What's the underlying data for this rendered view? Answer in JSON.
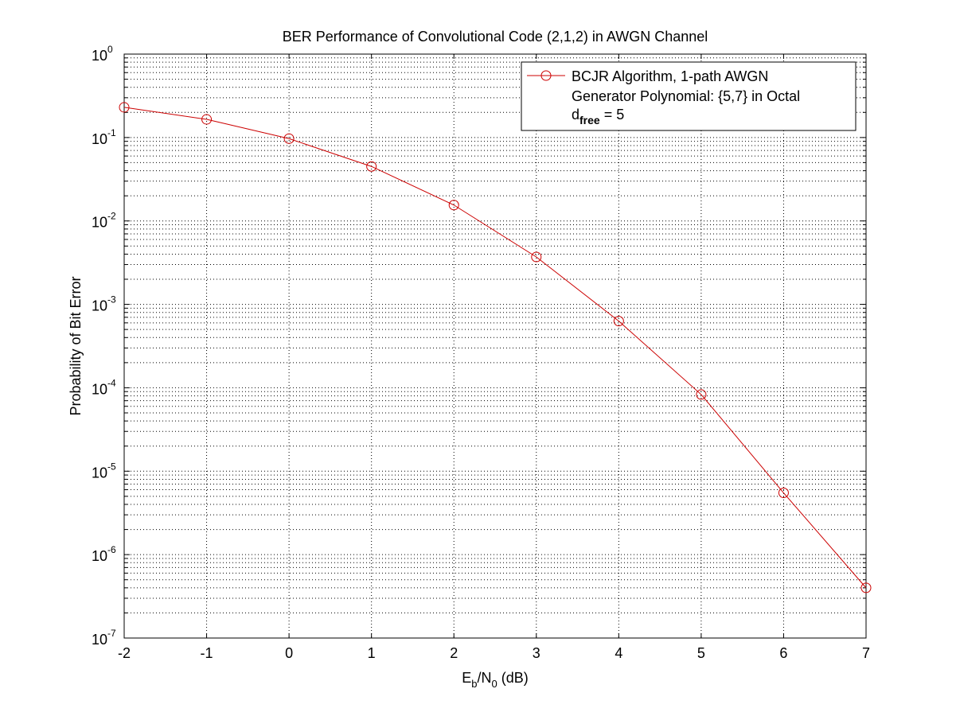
{
  "chart_data": {
    "type": "line",
    "title": "BER Performance of Convolutional Code (2,1,2) in AWGN Channel",
    "xlabel": {
      "base": "E",
      "sub1": "b",
      "mid": "/N",
      "sub2": "0",
      "tail": " (dB)"
    },
    "ylabel": "Probability of Bit Error",
    "x": [
      -2,
      -1,
      0,
      1,
      2,
      3,
      4,
      5,
      6,
      7
    ],
    "xlim": [
      -2,
      7
    ],
    "ylim": [
      1e-07,
      1
    ],
    "yscale": "log",
    "grid": true,
    "x_ticks": [
      "-2",
      "-1",
      "0",
      "1",
      "2",
      "3",
      "4",
      "5",
      "6",
      "7"
    ],
    "y_ticks": [
      {
        "base": "10",
        "exp": "0"
      },
      {
        "base": "10",
        "exp": "-1"
      },
      {
        "base": "10",
        "exp": "-2"
      },
      {
        "base": "10",
        "exp": "-3"
      },
      {
        "base": "10",
        "exp": "-4"
      },
      {
        "base": "10",
        "exp": "-5"
      },
      {
        "base": "10",
        "exp": "-6"
      },
      {
        "base": "10",
        "exp": "-7"
      }
    ],
    "series": [
      {
        "name": "BCJR Algorithm, 1-path AWGN",
        "color": "#cc0000",
        "marker": "circle",
        "values": [
          0.23,
          0.165,
          0.097,
          0.045,
          0.0155,
          0.0037,
          0.00063,
          8.3e-05,
          5.5e-06,
          4e-07
        ]
      }
    ],
    "legend": {
      "position": "top-right",
      "lines": [
        "BCJR Algorithm, 1-path AWGN",
        "Generator Polynomial: {5,7} in Octal"
      ],
      "dfree": {
        "base": "d",
        "sub": "free",
        "tail": " = 5"
      }
    }
  }
}
